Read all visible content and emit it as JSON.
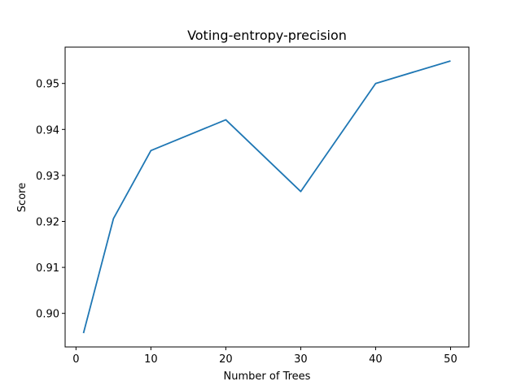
{
  "chart_data": {
    "type": "line",
    "title": "Voting-entropy-precision",
    "xlabel": "Number of Trees",
    "ylabel": "Score",
    "x": [
      1,
      5,
      10,
      20,
      30,
      40,
      50
    ],
    "series": [
      {
        "values": [
          0.8957,
          0.9206,
          0.9354,
          0.9421,
          0.9265,
          0.95,
          0.9549
        ],
        "color": "#1f77b4"
      }
    ],
    "xlim": [
      -1.45,
      52.45
    ],
    "ylim": [
      0.8927,
      0.9579
    ],
    "xticks": [
      0,
      10,
      20,
      30,
      40,
      50
    ],
    "xtick_labels": [
      "0",
      "10",
      "20",
      "30",
      "40",
      "50"
    ],
    "yticks": [
      0.9,
      0.91,
      0.92,
      0.93,
      0.94,
      0.95
    ],
    "ytick_labels": [
      "0.90",
      "0.91",
      "0.92",
      "0.93",
      "0.94",
      "0.95"
    ],
    "grid": false,
    "legend": "none"
  }
}
